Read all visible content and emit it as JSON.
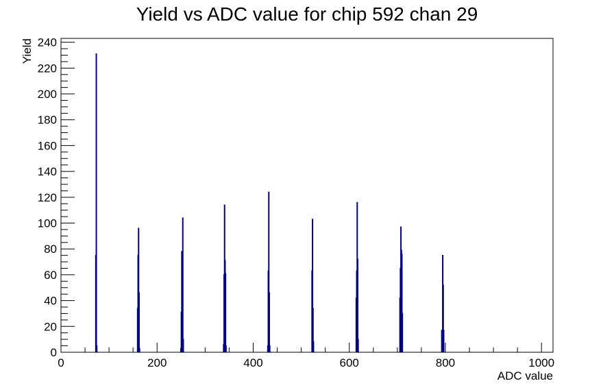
{
  "chart_data": {
    "type": "bar",
    "title": "Yield vs ADC value for chip 592 chan 29",
    "xlabel": "ADC value",
    "ylabel": "Yield",
    "xlim": [
      0,
      1024
    ],
    "ylim": [
      0,
      243
    ],
    "x_major_ticks": [
      0,
      200,
      400,
      600,
      800,
      1000
    ],
    "x_tick_labels": [
      "0",
      "200",
      "400",
      "600",
      "800",
      "1000"
    ],
    "y_major_ticks": [
      0,
      20,
      40,
      60,
      80,
      100,
      120,
      140,
      160,
      180,
      200,
      220,
      240
    ],
    "y_tick_labels": [
      "0",
      "20",
      "40",
      "60",
      "80",
      "100",
      "120",
      "140",
      "160",
      "180",
      "200",
      "220",
      "240"
    ],
    "grid": false,
    "legend": "none",
    "colors": {
      "histogram": "#000080",
      "frame": "#000000",
      "background": "#ffffff"
    },
    "bins": {
      "x": [
        71,
        72,
        73,
        74,
        75,
        76,
        158,
        159,
        160,
        161,
        162,
        163,
        164,
        248,
        249,
        250,
        251,
        252,
        253,
        254,
        255,
        337,
        338,
        339,
        340,
        341,
        342,
        343,
        344,
        429,
        430,
        431,
        432,
        433,
        434,
        435,
        436,
        437,
        521,
        522,
        523,
        524,
        525,
        526,
        527,
        528,
        613,
        614,
        615,
        616,
        617,
        618,
        619,
        620,
        704,
        705,
        706,
        707,
        708,
        709,
        710,
        711,
        791,
        792,
        793,
        794,
        795,
        796,
        797,
        798
      ],
      "y": [
        0,
        75,
        231,
        5,
        0,
        0,
        0,
        34,
        75,
        96,
        46,
        3,
        0,
        0,
        3,
        31,
        78,
        77,
        104,
        10,
        0,
        0,
        6,
        60,
        114,
        71,
        61,
        5,
        0,
        0,
        5,
        63,
        124,
        46,
        5,
        0,
        0,
        0,
        0,
        63,
        103,
        34,
        8,
        0,
        0,
        0,
        0,
        42,
        63,
        116,
        72,
        10,
        0,
        0,
        0,
        42,
        65,
        97,
        79,
        76,
        30,
        0,
        0,
        17,
        11,
        75,
        52,
        17,
        0,
        0
      ]
    }
  }
}
